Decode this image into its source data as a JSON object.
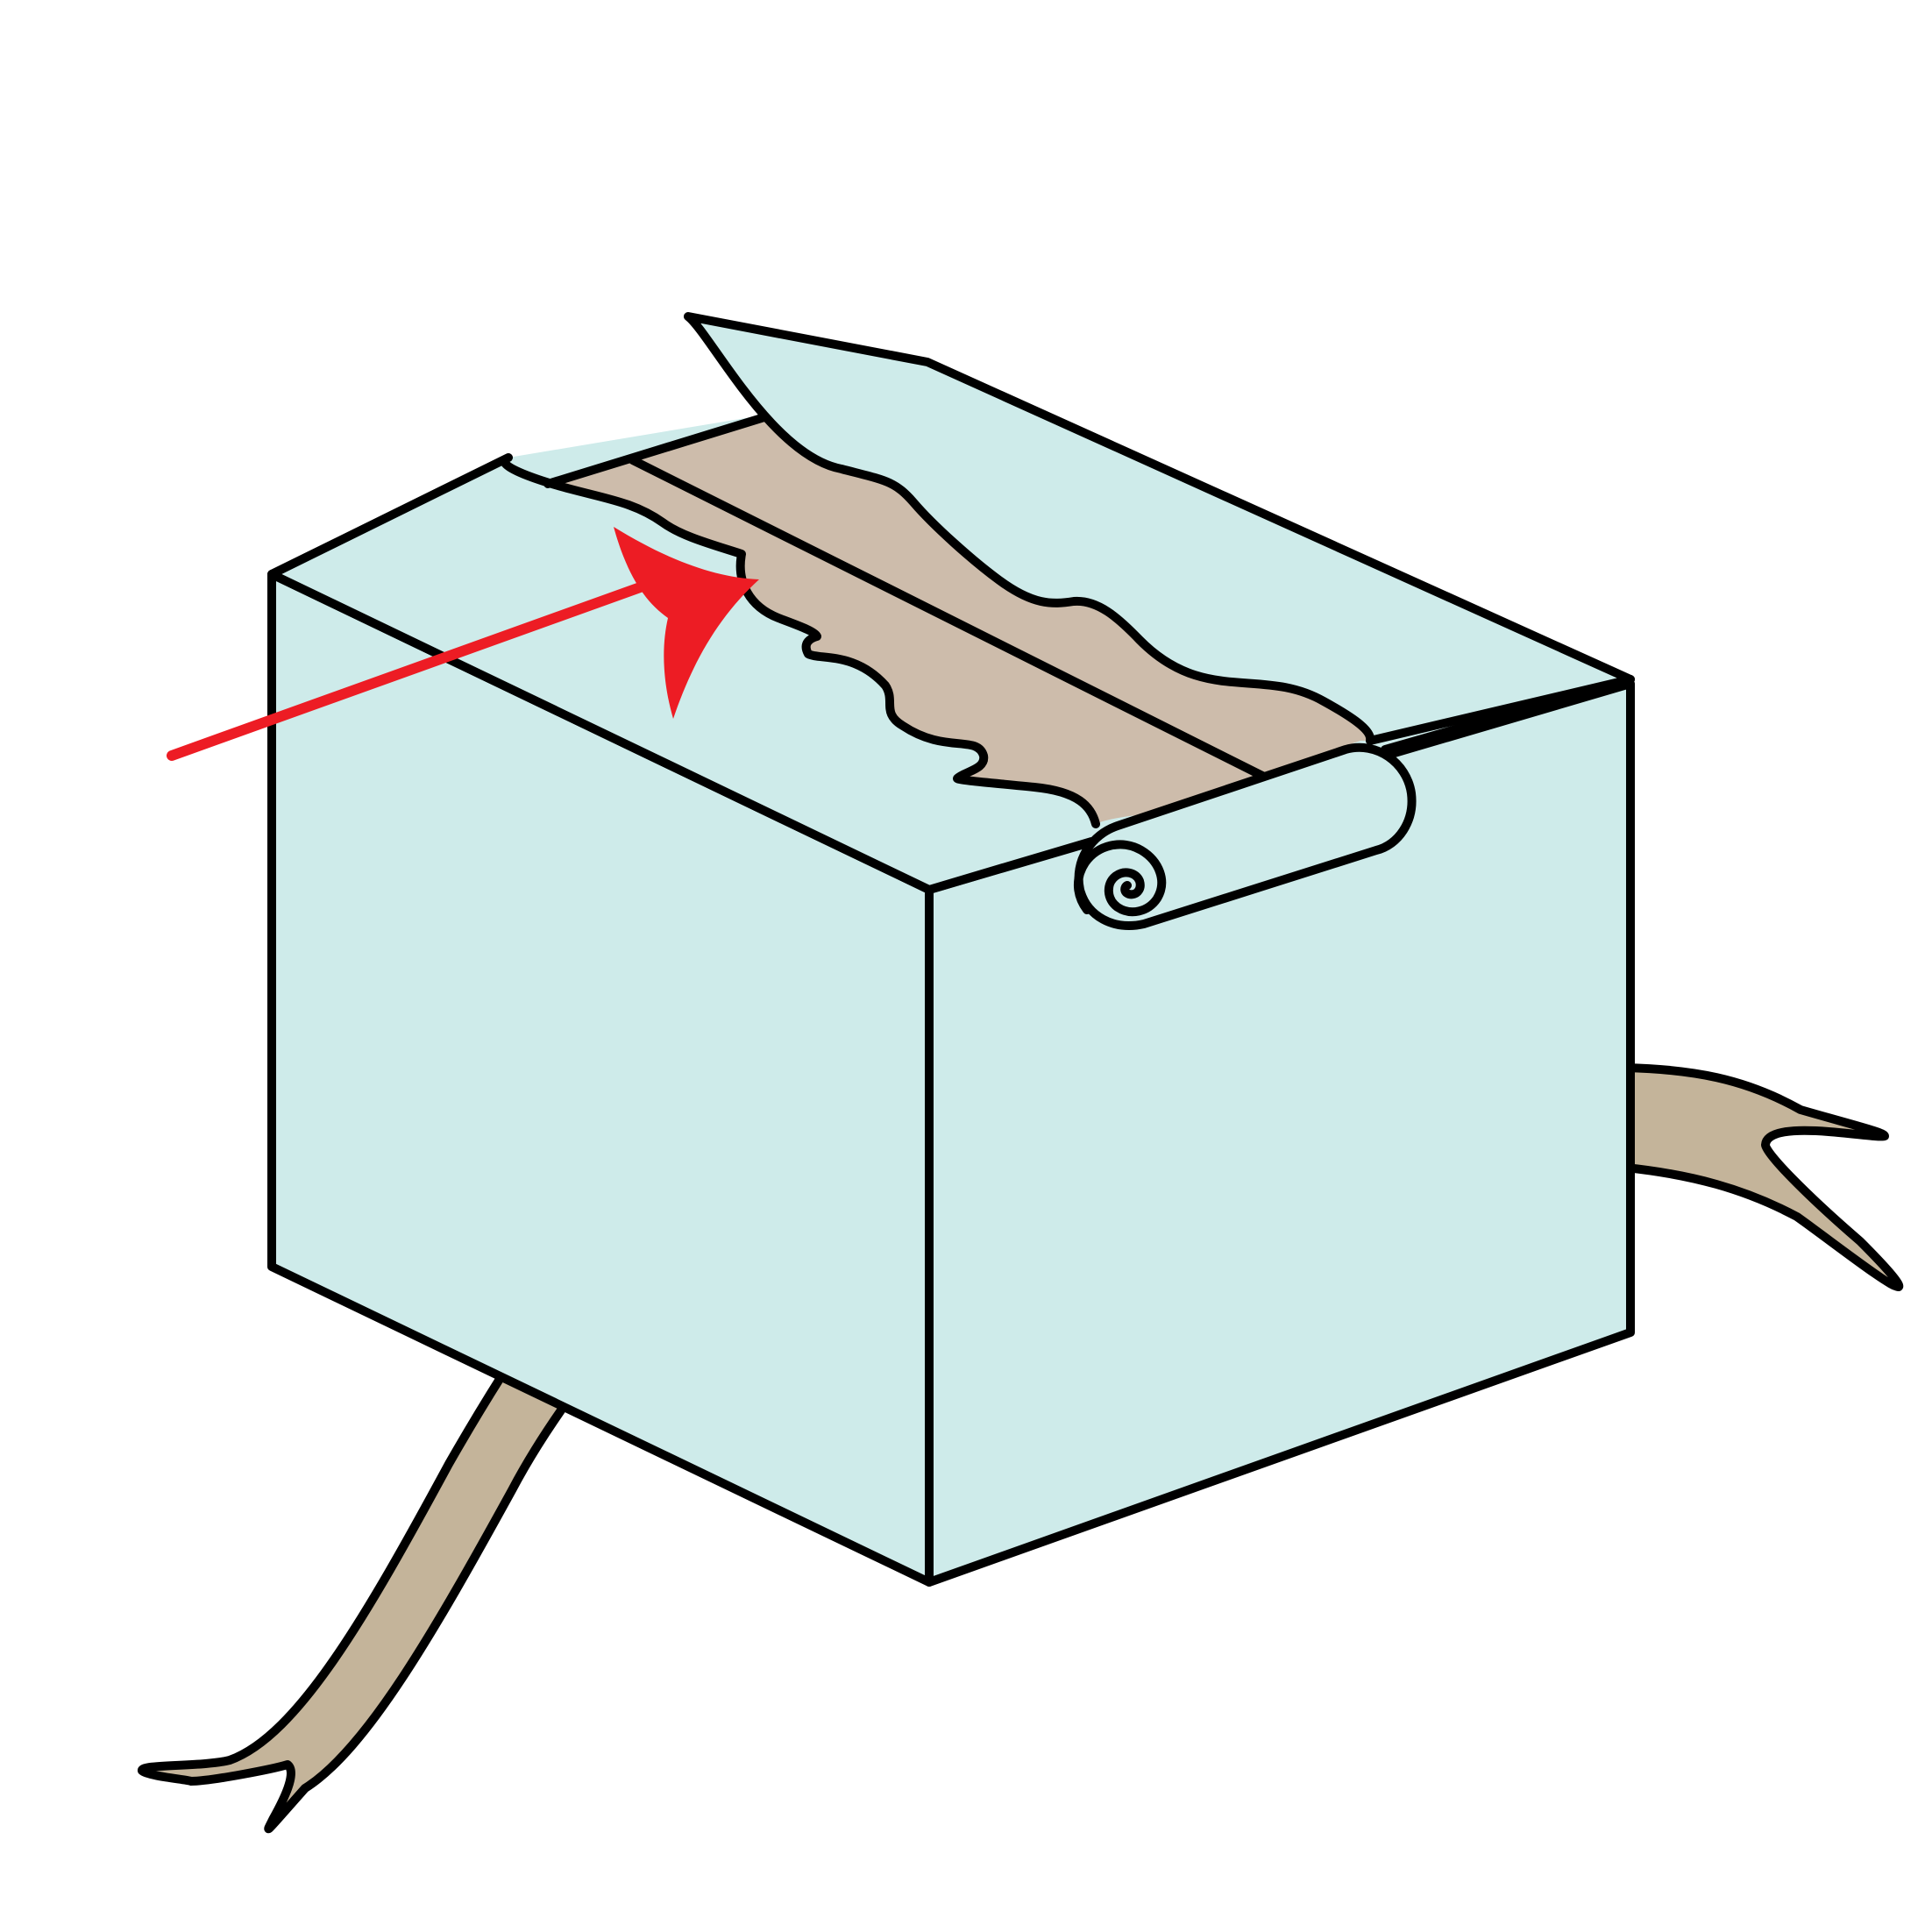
{
  "illustration": {
    "subject": "box-wrapping-step",
    "colors": {
      "box_face": "#CEEBEA",
      "wrap_paper": "#CDBCAB",
      "ribbon": "#C4B49A",
      "outline": "#000000",
      "arrow": "#ED1C24",
      "background": "#FFFFFF"
    },
    "icons": {
      "arrow": "curved-arrow-icon",
      "roll": "paper-roll-icon"
    }
  }
}
